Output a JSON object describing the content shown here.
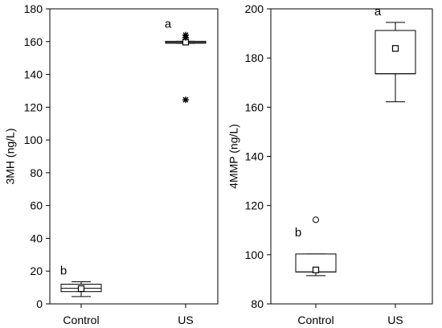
{
  "chart_data": [
    {
      "type": "box",
      "ylabel": "3MH (ng/L)",
      "ylim": [
        0,
        180
      ],
      "yticks": [
        0,
        20,
        40,
        60,
        80,
        100,
        120,
        140,
        160,
        180
      ],
      "categories": [
        "Control",
        "US"
      ],
      "grid": false,
      "boxes": [
        {
          "category": "Control",
          "whisker_low": 4.5,
          "q1": 7.5,
          "median": 9.5,
          "q3": 12,
          "whisker_high": 13.5,
          "mean": 9.3,
          "outliers": [],
          "letter": "b"
        },
        {
          "category": "US",
          "whisker_low": 159,
          "q1": 159,
          "median": 159.5,
          "q3": 160.2,
          "whisker_high": 160.2,
          "mean": 159.7,
          "outliers": [
            164,
            162.5,
            124.5
          ],
          "letter": "a"
        }
      ]
    },
    {
      "type": "box",
      "ylabel": "4MMP (ng/L)",
      "ylim": [
        80,
        200
      ],
      "yticks": [
        80,
        100,
        120,
        140,
        160,
        180,
        200
      ],
      "categories": [
        "Control",
        "US"
      ],
      "grid": false,
      "boxes": [
        {
          "category": "Control",
          "whisker_low": 91.5,
          "q1": 93,
          "median": 93,
          "q3": 100.3,
          "whisker_high": 100.3,
          "mean": 93.8,
          "outliers": [
            114.2
          ],
          "letter": "b"
        },
        {
          "category": "US",
          "whisker_low": 162.2,
          "q1": 173.6,
          "median": 173.6,
          "q3": 191.2,
          "whisker_high": 194.5,
          "mean": 183.9,
          "outliers": [],
          "letter": "a"
        }
      ]
    }
  ]
}
